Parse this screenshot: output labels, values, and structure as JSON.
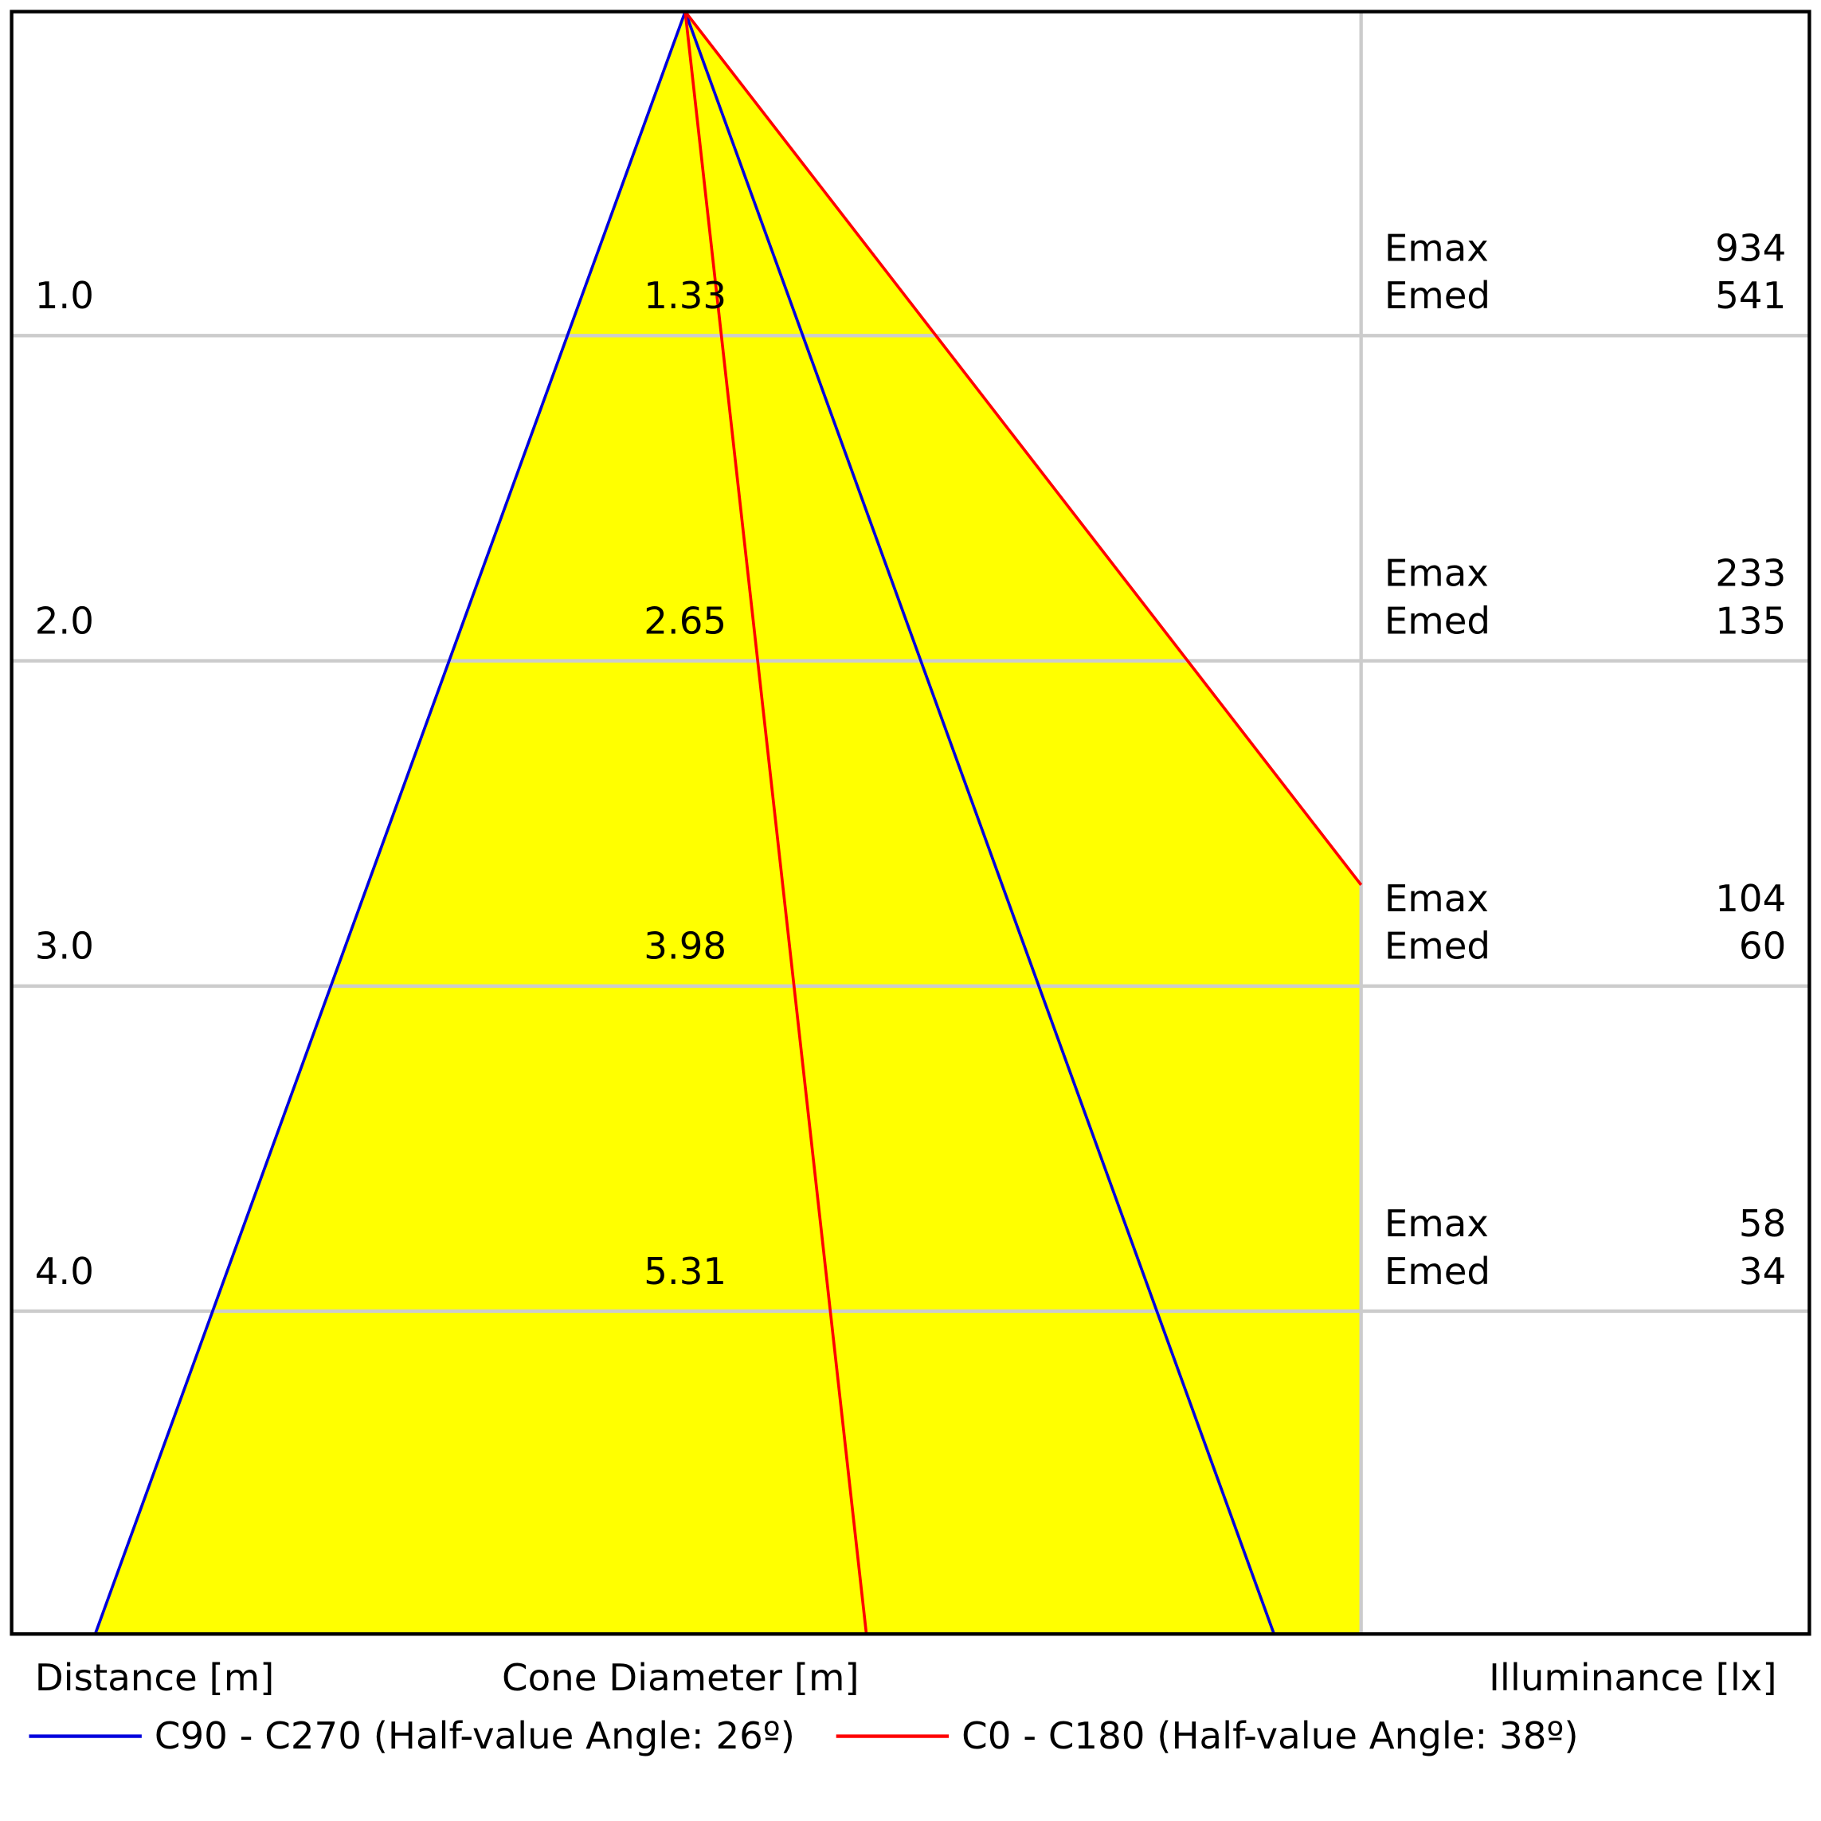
{
  "rows": [
    {
      "distance": "1.0",
      "diameter": "1.33",
      "emax_label": "Emax",
      "emax": "934",
      "emed_label": "Emed",
      "emed": "541"
    },
    {
      "distance": "2.0",
      "diameter": "2.65",
      "emax_label": "Emax",
      "emax": "233",
      "emed_label": "Emed",
      "emed": "135"
    },
    {
      "distance": "3.0",
      "diameter": "3.98",
      "emax_label": "Emax",
      "emax": "104",
      "emed_label": "Emed",
      "emed": "60"
    },
    {
      "distance": "4.0",
      "diameter": "5.31",
      "emax_label": "Emax",
      "emax": "58",
      "emed_label": "Emed",
      "emed": "34"
    }
  ],
  "axis_labels": {
    "distance": "Distance [m]",
    "diameter": "Cone Diameter [m]",
    "illuminance": "Illuminance [lx]"
  },
  "legend": [
    {
      "label": "C90 - C270 (Half-value Angle: 26º)",
      "color": "#0000dd"
    },
    {
      "label": "C0 - C180 (Half-value Angle: 38º)",
      "color": "#ff0000"
    }
  ]
}
